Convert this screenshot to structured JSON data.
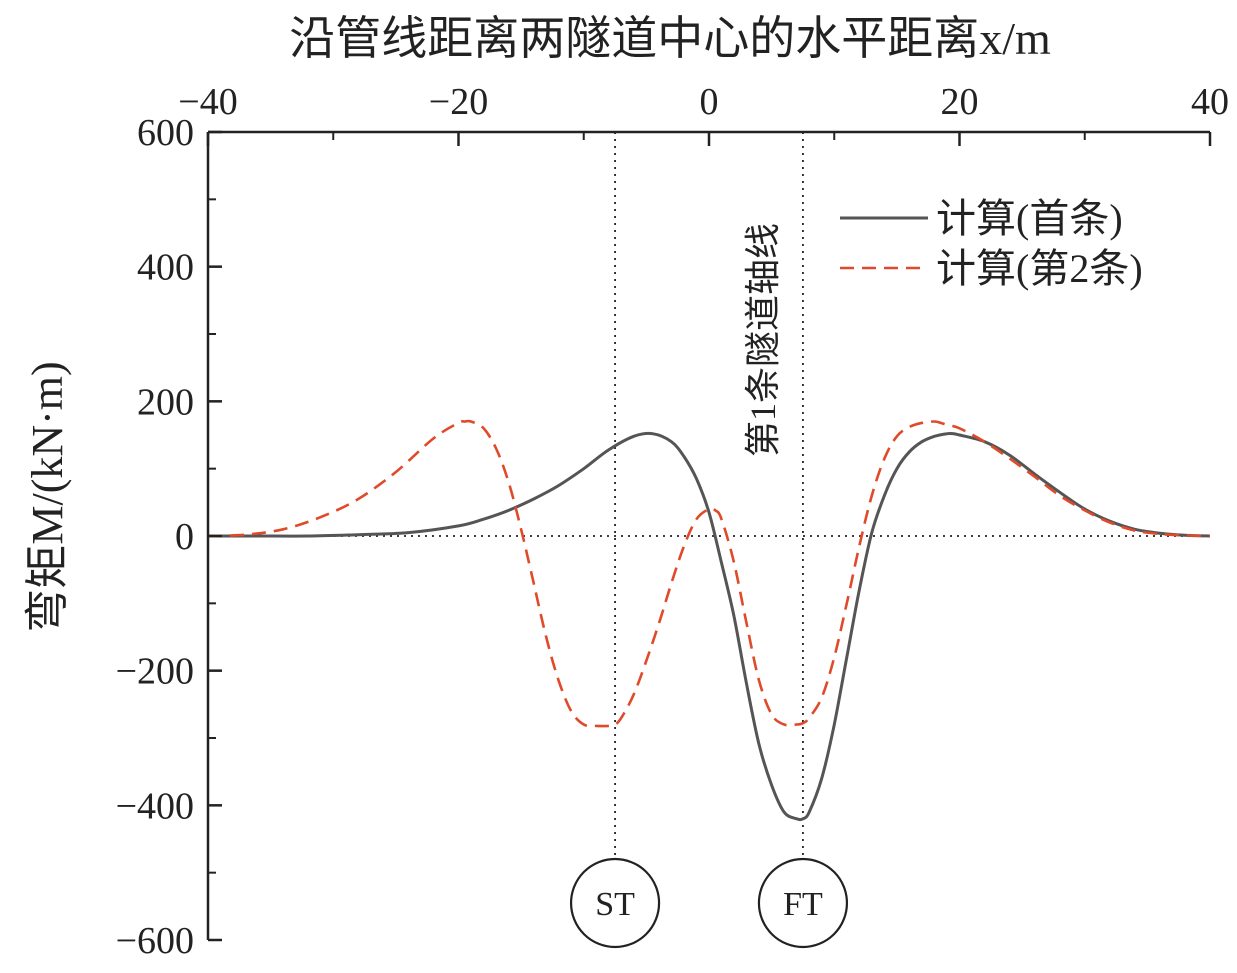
{
  "chart_data": {
    "type": "line",
    "title": "沿管线距离两隧道中心的水平距离x/m",
    "xlabel": "沿管线距离两隧道中心的水平距离x/m",
    "ylabel": "弯矩M/(kN·m)",
    "xlim": [
      -40,
      40
    ],
    "ylim": [
      -600,
      600
    ],
    "xticks": [
      -40,
      -20,
      0,
      20,
      40
    ],
    "yticks": [
      600,
      400,
      200,
      0,
      -200,
      -400,
      -600
    ],
    "xtick_labels": [
      "−40",
      "−20",
      "0",
      "20",
      "40"
    ],
    "ytick_labels": [
      "600",
      "400",
      "200",
      "0",
      "−200",
      "−400",
      "−600"
    ],
    "x_axis_position": "top",
    "legend_position": "top-right",
    "grid": false,
    "series": [
      {
        "name": "计算(首条)",
        "color": "#555555",
        "style": "solid",
        "x": [
          -40,
          -36,
          -32,
          -28,
          -24,
          -20,
          -18,
          -16,
          -14,
          -12,
          -10,
          -8,
          -6,
          -4.5,
          -3,
          -2,
          -1,
          0,
          1,
          2,
          3,
          4,
          5,
          6,
          7,
          7.5,
          8,
          9,
          10,
          11,
          12,
          13,
          14,
          15,
          16,
          17,
          18,
          19,
          19.5,
          20,
          22,
          24,
          26,
          28,
          30,
          32,
          34,
          36,
          38,
          40
        ],
        "y": [
          0,
          0,
          0,
          2,
          5,
          15,
          25,
          38,
          55,
          75,
          100,
          128,
          148,
          152,
          140,
          118,
          85,
          35,
          -40,
          -120,
          -220,
          -310,
          -370,
          -410,
          -420,
          -420,
          -410,
          -360,
          -280,
          -180,
          -80,
          5,
          60,
          100,
          125,
          140,
          148,
          152,
          152,
          150,
          140,
          120,
          92,
          65,
          40,
          22,
          10,
          4,
          1,
          0
        ]
      },
      {
        "name": "计算(第2条)",
        "color": "#e04a2a",
        "style": "dashed",
        "x": [
          -40,
          -37,
          -34,
          -31,
          -28,
          -25,
          -22,
          -20,
          -19.5,
          -19,
          -18,
          -17,
          -16,
          -15,
          -14,
          -13,
          -12,
          -11,
          -10,
          -9,
          -8,
          -7.5,
          -7,
          -6,
          -5,
          -4,
          -3,
          -2,
          -1,
          0,
          0.5,
          1,
          2,
          3,
          4,
          5,
          6,
          7,
          7.5,
          8,
          9,
          10,
          11,
          12,
          13,
          14,
          15,
          16,
          17,
          18,
          18.5,
          19,
          20,
          22,
          24,
          26,
          28,
          30,
          32,
          34,
          36,
          38,
          40
        ],
        "y": [
          0,
          2,
          10,
          28,
          55,
          95,
          145,
          168,
          170,
          170,
          160,
          130,
          80,
          10,
          -70,
          -150,
          -215,
          -260,
          -280,
          -282,
          -282,
          -280,
          -270,
          -235,
          -185,
          -130,
          -70,
          -15,
          25,
          40,
          38,
          25,
          -40,
          -130,
          -215,
          -265,
          -280,
          -280,
          -278,
          -270,
          -240,
          -180,
          -100,
          -15,
          60,
          115,
          148,
          162,
          168,
          170,
          168,
          165,
          160,
          140,
          115,
          88,
          60,
          38,
          20,
          8,
          3,
          1,
          0
        ]
      }
    ],
    "reference_lines": [
      {
        "axis": "y",
        "value": 0,
        "style": "dotted"
      },
      {
        "axis": "x",
        "value": -7.5,
        "style": "dotted",
        "marker_label": "ST"
      },
      {
        "axis": "x",
        "value": 7.5,
        "style": "dotted",
        "marker_label": "FT",
        "annotation": "第1条隧道轴线"
      }
    ]
  }
}
